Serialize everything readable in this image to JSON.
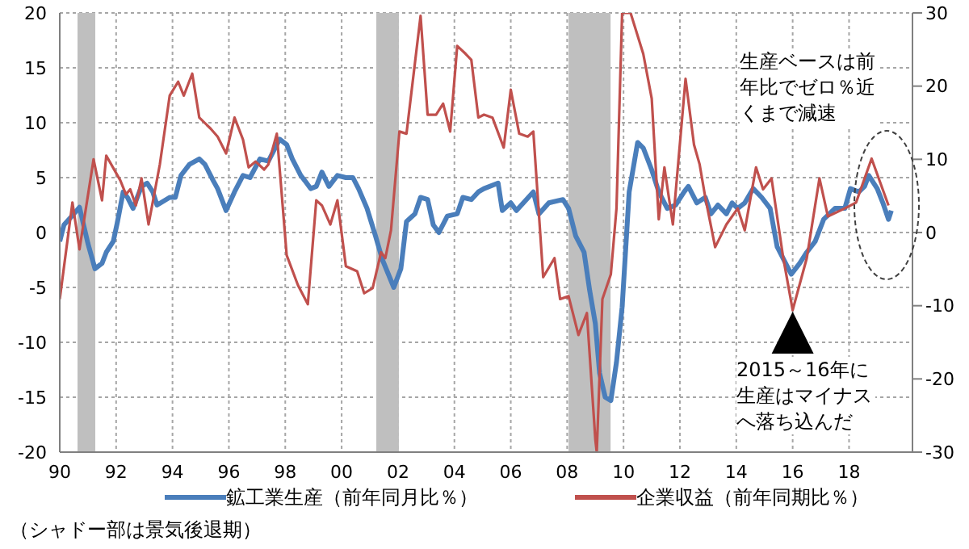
{
  "chart_data": {
    "type": "line",
    "xlim": [
      1990,
      2020.25
    ],
    "xticks": [
      {
        "value": 1990,
        "label": "90"
      },
      {
        "value": 1992,
        "label": "92"
      },
      {
        "value": 1994,
        "label": "94"
      },
      {
        "value": 1996,
        "label": "96"
      },
      {
        "value": 1998,
        "label": "98"
      },
      {
        "value": 2000,
        "label": "00"
      },
      {
        "value": 2002,
        "label": "02"
      },
      {
        "value": 2004,
        "label": "04"
      },
      {
        "value": 2006,
        "label": "06"
      },
      {
        "value": 2008,
        "label": "08"
      },
      {
        "value": 2010,
        "label": "10"
      },
      {
        "value": 2012,
        "label": "12"
      },
      {
        "value": 2014,
        "label": "14"
      },
      {
        "value": 2016,
        "label": "16"
      },
      {
        "value": 2018,
        "label": "18"
      }
    ],
    "ylim": [
      -20,
      20
    ],
    "yticks": [
      -20,
      -15,
      -10,
      -5,
      0,
      5,
      10,
      15,
      20
    ],
    "y2lim": [
      -30,
      30
    ],
    "y2ticks": [
      -30,
      -20,
      -10,
      0,
      10,
      20,
      30
    ],
    "grid": true,
    "legend": "bottom",
    "marker": "none",
    "line_style": "solid",
    "bands": [
      {
        "axis": "x",
        "from": 1990.63,
        "to": 1991.26,
        "color": "#bfbfbf"
      },
      {
        "axis": "x",
        "from": 2001.23,
        "to": 2002.03,
        "color": "#bfbfbf"
      },
      {
        "axis": "x",
        "from": 2008.05,
        "to": 2009.54,
        "color": "#bfbfbf"
      }
    ],
    "series": [
      {
        "name": "鉱工業生産（前年同月比％）",
        "color": "#4a7ebb",
        "type": "line",
        "axis": "y",
        "x": [
          1990,
          1990.15,
          1990.5,
          1990.7,
          1990.8,
          1991,
          1991.25,
          1991.5,
          1991.65,
          1991.9,
          1992.05,
          1992.25,
          1992.4,
          1992.6,
          1992.9,
          1993.1,
          1993.3,
          1993.45,
          1993.9,
          1994.1,
          1994.3,
          1994.6,
          1994.95,
          1995.15,
          1995.45,
          1995.6,
          1995.9,
          1996.2,
          1996.5,
          1996.75,
          1997.1,
          1997.4,
          1997.8,
          1998.05,
          1998.25,
          1998.55,
          1998.7,
          1998.9,
          1999.1,
          1999.3,
          1999.55,
          1999.85,
          2000.15,
          2000.4,
          2000.6,
          2000.9,
          2001.2,
          2001.45,
          2001.85,
          2002.1,
          2002.3,
          2002.6,
          2002.8,
          2003.05,
          2003.25,
          2003.45,
          2003.75,
          2004.1,
          2004.3,
          2004.6,
          2004.85,
          2005.05,
          2005.55,
          2005.7,
          2006,
          2006.2,
          2006.8,
          2007,
          2007.35,
          2007.85,
          2008.05,
          2008.3,
          2008.6,
          2008.8,
          2009,
          2009.15,
          2009.35,
          2009.55,
          2009.75,
          2009.95,
          2010.2,
          2010.5,
          2010.7,
          2011,
          2011.25,
          2011.55,
          2011.85,
          2012.15,
          2012.3,
          2012.6,
          2012.9,
          2013.1,
          2013.35,
          2013.65,
          2013.85,
          2014.05,
          2014.3,
          2014.6,
          2014.9,
          2015.2,
          2015.45,
          2015.75,
          2015.95,
          2016.25,
          2016.5,
          2016.8,
          2017.1,
          2017.5,
          2017.85,
          2018.05,
          2018.35,
          2018.55,
          2018.7,
          2019,
          2019.2,
          2019.4,
          2019.5
        ],
        "values": [
          -0.8,
          0.7,
          1.7,
          2.3,
          1.2,
          -1,
          -3.3,
          -2.8,
          -1.8,
          -0.8,
          1,
          3.7,
          3.2,
          2.2,
          4.2,
          4.5,
          3.7,
          2.5,
          3.2,
          3.2,
          5.2,
          6.2,
          6.7,
          6.2,
          4.7,
          4,
          2,
          3.7,
          5.2,
          5,
          6.7,
          6.5,
          8.5,
          8,
          6.7,
          5.2,
          4.7,
          4,
          4.2,
          5.5,
          4.2,
          5.2,
          5,
          5,
          4,
          2.2,
          -0.3,
          -2.5,
          -5,
          -3.3,
          1,
          1.7,
          3.2,
          3,
          0.7,
          0,
          1.5,
          1.7,
          3.2,
          3,
          3.7,
          4,
          4.5,
          2,
          2.7,
          2,
          3.7,
          1.7,
          2.7,
          3,
          2.2,
          -0.3,
          -1.8,
          -5.3,
          -8.3,
          -12.8,
          -15,
          -15.3,
          -11.8,
          -6.8,
          3.7,
          8.2,
          7.7,
          5.7,
          3.7,
          2.2,
          2.5,
          3.7,
          4.2,
          2.7,
          3.2,
          1.7,
          2.5,
          1.7,
          2.7,
          2.2,
          2.7,
          4,
          3.2,
          2.2,
          -1.3,
          -2.8,
          -3.8,
          -2.8,
          -1.8,
          -0.8,
          1.2,
          2.2,
          2.2,
          4,
          3.7,
          4.2,
          5.2,
          4,
          2.7,
          1.2,
          2
        ]
      },
      {
        "name": "企業収益（前年同期比％）",
        "color": "#c0504d",
        "type": "line",
        "axis": "y2",
        "x": [
          1990,
          1990.45,
          1990.7,
          1991.2,
          1991.5,
          1991.65,
          1992.15,
          1992.35,
          1992.5,
          1992.7,
          1992.9,
          1993.15,
          1993.55,
          1993.9,
          1994.2,
          1994.4,
          1994.7,
          1994.95,
          1995.35,
          1995.6,
          1995.9,
          1996.2,
          1996.5,
          1996.7,
          1996.95,
          1997.25,
          1997.4,
          1997.7,
          1998.05,
          1998.45,
          1998.8,
          1999.1,
          1999.3,
          1999.6,
          1999.85,
          2000.15,
          2000.55,
          2000.8,
          2001.1,
          2001.4,
          2001.55,
          2001.75,
          2002.05,
          2002.3,
          2002.8,
          2003.05,
          2003.35,
          2003.6,
          2003.85,
          2004.1,
          2004.4,
          2004.6,
          2004.85,
          2005.05,
          2005.35,
          2005.75,
          2006,
          2006.3,
          2006.6,
          2006.8,
          2007.15,
          2007.55,
          2007.75,
          2008.05,
          2008.4,
          2008.7,
          2009,
          2009.05,
          2009.25,
          2009.55,
          2009.75,
          2009.95,
          2010.25,
          2010.7,
          2011,
          2011.25,
          2011.45,
          2011.75,
          2012.2,
          2012.5,
          2012.7,
          2012.9,
          2013.25,
          2013.65,
          2014.05,
          2014.3,
          2014.7,
          2014.95,
          2015.25,
          2015.65,
          2016,
          2016.5,
          2016.95,
          2017.25,
          2017.85,
          2018.25,
          2018.8,
          2019.4
        ],
        "values": [
          -9.1,
          4.1,
          -2.3,
          10,
          4.4,
          10.5,
          7.1,
          5.2,
          5.9,
          3.7,
          7.4,
          1.1,
          9.3,
          18.7,
          20.6,
          18.7,
          21.7,
          15.7,
          14.2,
          13.1,
          10.8,
          15.7,
          12.7,
          8.9,
          9.7,
          8.6,
          9.3,
          13.5,
          -3.1,
          -7.2,
          -9.8,
          4.4,
          3.7,
          1.1,
          4.4,
          -4.6,
          -5.3,
          -8.3,
          -7.6,
          -2.7,
          -3.5,
          0.3,
          13.8,
          13.5,
          29.6,
          16.1,
          16.1,
          17.6,
          13.8,
          25.5,
          24.4,
          23.6,
          15.7,
          16.1,
          15.7,
          11.6,
          19.5,
          13.5,
          13.1,
          13.8,
          -6.1,
          -3.5,
          -9.1,
          -8.7,
          -14,
          -11,
          -28.3,
          -30,
          -9.1,
          -5.7,
          3.3,
          30,
          30,
          24.4,
          18.3,
          1.8,
          8.9,
          1.1,
          21,
          12,
          9.3,
          4.8,
          -2,
          1.1,
          3.3,
          0.3,
          8.9,
          5.9,
          7.4,
          -3.1,
          -10.6,
          -3.5,
          7.4,
          2.2,
          3.3,
          4.1,
          10.1,
          3.7
        ]
      }
    ],
    "annotations": [
      "生産ベースは前年比でゼロ％近くまで減速",
      "2015～16年に生産はマイナスへ落ち込んだ",
      "（シャドー部は景気後退期）"
    ]
  }
}
